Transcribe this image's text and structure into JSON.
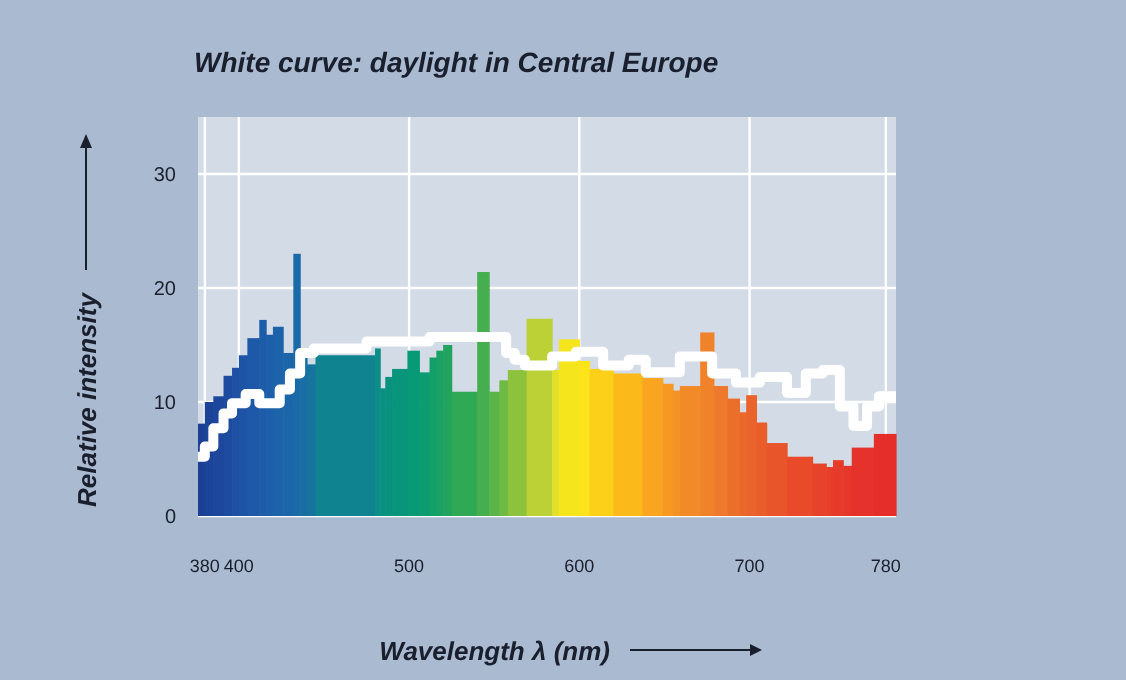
{
  "chart_data": {
    "type": "histogram",
    "title": "White curve: daylight in Central Europe",
    "xlabel": "Wavelength λ (nm)",
    "ylabel": "Relative intensity",
    "xlim": [
      376,
      786
    ],
    "xticks": [
      380,
      400,
      500,
      600,
      700,
      780
    ],
    "ylim": [
      0,
      35
    ],
    "yticks": [
      0,
      10,
      20,
      30
    ],
    "grid": true,
    "bins": [
      376,
      380,
      385,
      391,
      396,
      400,
      405,
      412,
      416,
      420,
      426,
      432,
      436,
      440,
      445,
      480,
      483,
      486,
      490,
      499,
      506,
      512,
      516,
      520,
      525,
      540,
      547,
      553,
      558,
      569,
      584,
      588,
      600,
      606,
      620,
      637,
      649,
      655,
      659,
      671,
      679,
      687,
      694,
      698,
      704,
      710,
      722,
      737,
      745,
      749,
      755,
      760,
      773,
      786
    ],
    "series": [
      {
        "values": [
          8.1,
          10,
          10.5,
          12.3,
          13,
          14.1,
          15.6,
          17.2,
          15.9,
          16.6,
          14.3,
          23,
          14.3,
          13.3,
          14.1,
          14.7,
          11.2,
          12.2,
          12.9,
          14.5,
          12.6,
          13.9,
          14.5,
          15,
          10.9,
          21.4,
          10.9,
          11.9,
          12.8,
          17.3,
          12.8,
          15.5,
          13.6,
          12.9,
          12.5,
          12.1,
          11.6,
          11.0,
          11.4,
          16.1,
          11.4,
          10.3,
          9.1,
          10.6,
          8.2,
          6.4,
          5.2,
          4.6,
          4.3,
          4.9,
          4.4,
          6.0,
          7.2
        ],
        "colors": [
          "#1b3f95",
          "#1b4398",
          "#1c479c",
          "#1d4ba0",
          "#1e50a3",
          "#1e54a6",
          "#1e58a8",
          "#1d5ca9",
          "#1d5faa",
          "#1c63aa",
          "#1b66a9",
          "#1a6aa8",
          "#186ea4",
          "#16739f",
          "#0f8490",
          "#0a8e86",
          "#0a9083",
          "#099280",
          "#08957c",
          "#089977",
          "#0c9c70",
          "#139f69",
          "#1aa163",
          "#22a35e",
          "#30a955",
          "#45ae4f",
          "#5bb449",
          "#6fba43",
          "#8cc23c",
          "#bcd135",
          "#e4e02a",
          "#f5e51c",
          "#fde41a",
          "#fcd018",
          "#fbba1a",
          "#f9a51f",
          "#f79823",
          "#f59226",
          "#f38a28",
          "#f0822a",
          "#ee782b",
          "#ec6e2b",
          "#eb682b",
          "#ea632b",
          "#e95d2b",
          "#e8552b",
          "#e84a2a",
          "#e7422a",
          "#e73e2a",
          "#e63a2a",
          "#e6372a",
          "#e5322a",
          "#e52d2a"
        ]
      },
      {
        "type": "step",
        "color": "#ffffff",
        "x": [
          376,
          380,
          385,
          391,
          396,
          404,
          412,
          424,
          430,
          436,
          444,
          475,
          512,
          557,
          562,
          568,
          584,
          598,
          614,
          629,
          639,
          659,
          678,
          692,
          706,
          722,
          733,
          743,
          753,
          761,
          769,
          776,
          786
        ],
        "values": [
          5.2,
          6.1,
          7.7,
          9.0,
          9.9,
          10.7,
          9.9,
          11.1,
          12.5,
          14.3,
          14.7,
          15.3,
          15.7,
          14.3,
          13.7,
          13.2,
          14.0,
          14.4,
          13.2,
          13.7,
          12.6,
          14.0,
          12.5,
          11.7,
          12.2,
          10.8,
          12.5,
          12.8,
          9.6,
          7.9,
          9.6,
          10.5,
          10.5
        ]
      }
    ]
  }
}
